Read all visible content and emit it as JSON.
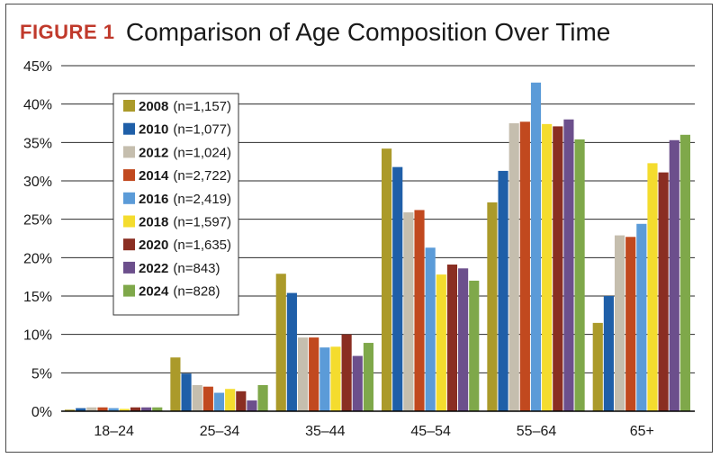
{
  "header": {
    "figure_label": "FIGURE 1",
    "title": "Comparison of Age Composition Over Time"
  },
  "chart_data": {
    "type": "bar",
    "title": "Comparison of Age Composition Over Time",
    "xlabel": "",
    "ylabel": "",
    "ylim": [
      0,
      45
    ],
    "yticks": [
      "0%",
      "5%",
      "10%",
      "15%",
      "20%",
      "25%",
      "30%",
      "35%",
      "40%",
      "45%"
    ],
    "grid": "horizontal",
    "legend_position": "top-left",
    "categories": [
      "18–24",
      "25–34",
      "35–44",
      "45–54",
      "55–64",
      "65+"
    ],
    "series": [
      {
        "name": "2008",
        "n_label": "(n=1,157)",
        "color": "#ab9a2a",
        "values": [
          0.2,
          7.0,
          17.9,
          34.2,
          27.2,
          11.5
        ]
      },
      {
        "name": "2010",
        "n_label": "(n=1,077)",
        "color": "#1f5fa8",
        "values": [
          0.4,
          4.9,
          15.4,
          31.8,
          31.3,
          15.0
        ]
      },
      {
        "name": "2012",
        "n_label": "(n=1,024)",
        "color": "#c5beae",
        "values": [
          0.5,
          3.4,
          9.6,
          25.9,
          37.5,
          22.9
        ]
      },
      {
        "name": "2014",
        "n_label": "(n=2,722)",
        "color": "#c1491f",
        "values": [
          0.5,
          3.2,
          9.6,
          26.2,
          37.7,
          22.7
        ]
      },
      {
        "name": "2016",
        "n_label": "(n=2,419)",
        "color": "#5b9bd8",
        "values": [
          0.4,
          2.4,
          8.3,
          21.3,
          42.8,
          24.4
        ]
      },
      {
        "name": "2018",
        "n_label": "(n=1,597)",
        "color": "#f4dc2e",
        "values": [
          0.3,
          2.9,
          8.4,
          17.8,
          37.4,
          32.3
        ]
      },
      {
        "name": "2020",
        "n_label": "(n=1,635)",
        "color": "#8a2e22",
        "values": [
          0.5,
          2.6,
          10.0,
          19.1,
          37.1,
          31.1
        ]
      },
      {
        "name": "2022",
        "n_label": "(n=843)",
        "color": "#6c4f8c",
        "values": [
          0.5,
          1.4,
          7.2,
          18.6,
          38.0,
          35.3
        ]
      },
      {
        "name": "2024",
        "n_label": "(n=828)",
        "color": "#7fa84a",
        "values": [
          0.5,
          3.4,
          8.9,
          17.0,
          35.4,
          36.0
        ]
      }
    ]
  }
}
